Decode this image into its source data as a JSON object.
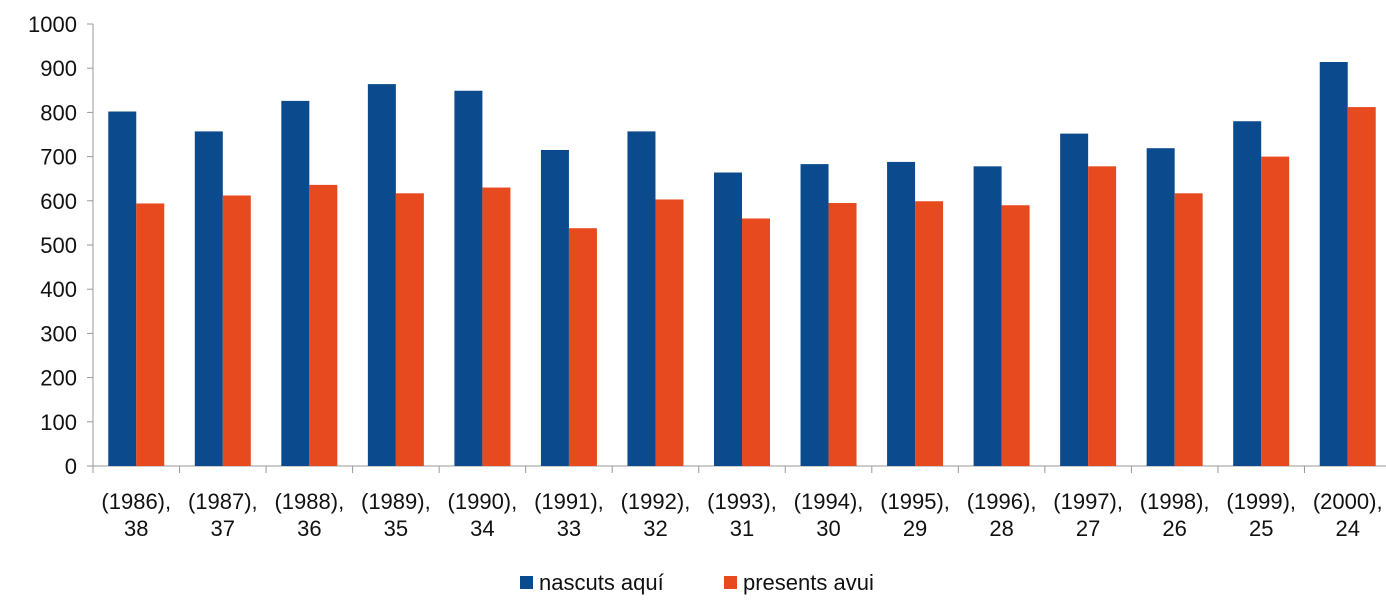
{
  "chart_data": {
    "type": "bar",
    "title": "",
    "xlabel": "",
    "ylabel": "",
    "ylim": [
      0,
      1000
    ],
    "yticks": [
      0,
      100,
      200,
      300,
      400,
      500,
      600,
      700,
      800,
      900,
      1000
    ],
    "grid": false,
    "legend": "bottom",
    "categories": [
      [
        "(1986),",
        "38"
      ],
      [
        "(1987),",
        "37"
      ],
      [
        "(1988),",
        "36"
      ],
      [
        "(1989),",
        "35"
      ],
      [
        "(1990),",
        "34"
      ],
      [
        "(1991),",
        "33"
      ],
      [
        "(1992),",
        "32"
      ],
      [
        "(1993),",
        "31"
      ],
      [
        "(1994),",
        "30"
      ],
      [
        "(1995),",
        "29"
      ],
      [
        "(1996),",
        "28"
      ],
      [
        "(1997),",
        "27"
      ],
      [
        "(1998),",
        "26"
      ],
      [
        "(1999),",
        "25"
      ],
      [
        "(2000),",
        "24"
      ]
    ],
    "series": [
      {
        "name": "nascuts aquí",
        "color": "#0b4a8c",
        "values": [
          802,
          757,
          826,
          864,
          849,
          715,
          757,
          664,
          683,
          688,
          678,
          752,
          719,
          780,
          914
        ]
      },
      {
        "name": "presents avui",
        "color": "#e84a1f",
        "values": [
          594,
          612,
          636,
          617,
          630,
          538,
          603,
          560,
          595,
          599,
          590,
          678,
          617,
          700,
          812
        ]
      }
    ]
  }
}
